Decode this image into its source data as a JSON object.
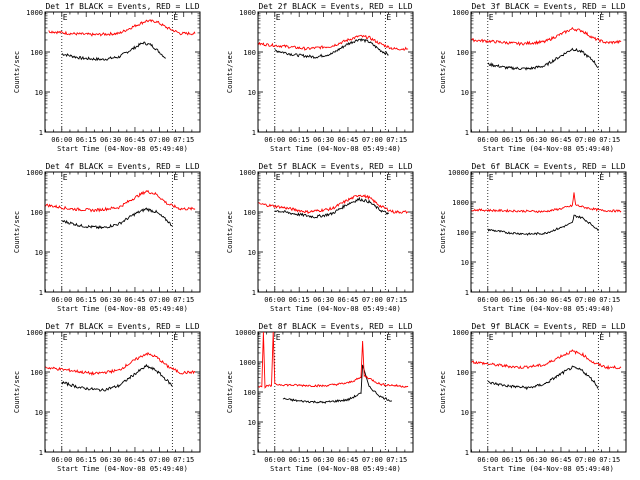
{
  "colors": {
    "events": "#000000",
    "lld": "#ff0000",
    "axis": "#000000",
    "background": "#ffffff"
  },
  "chart_data": [
    {
      "type": "line",
      "title": "Det 1f BLACK = Events, RED = LLD",
      "xlabel": "Start Time (04-Nov-08 05:49:40)",
      "ylabel": "Counts/sec",
      "yscale": "log",
      "ylim": [
        1,
        1000
      ],
      "yticks": [
        "1",
        "10",
        "100",
        "1000"
      ],
      "xticks": [
        "06:00",
        "06:15",
        "06:30",
        "06:45",
        "07:00",
        "07:15"
      ],
      "xlim": [
        "05:49:40",
        "07:25"
      ],
      "vlines": [
        "06:00",
        "07:08"
      ],
      "markers": [
        "E",
        "E"
      ],
      "series": [
        {
          "key": "events",
          "x": [
            "06:00",
            "06:12",
            "06:25",
            "06:35",
            "06:45",
            "06:50",
            "06:55",
            "07:00",
            "07:04"
          ],
          "values": [
            90,
            70,
            65,
            75,
            130,
            170,
            150,
            100,
            70
          ]
        },
        {
          "key": "lld",
          "x": [
            "05:52",
            "06:05",
            "06:20",
            "06:35",
            "06:45",
            "06:52",
            "06:58",
            "07:05",
            "07:13",
            "07:22"
          ],
          "values": [
            330,
            290,
            270,
            290,
            450,
            600,
            580,
            400,
            290,
            290
          ]
        }
      ]
    },
    {
      "type": "line",
      "title": "Det 2f BLACK = Events, RED = LLD",
      "xlabel": "Start Time (04-Nov-08 05:49:40)",
      "ylabel": "Counts/sec",
      "yscale": "log",
      "ylim": [
        1,
        1000
      ],
      "yticks": [
        "1",
        "10",
        "100",
        "1000"
      ],
      "xticks": [
        "06:00",
        "06:15",
        "06:30",
        "06:45",
        "07:00",
        "07:15"
      ],
      "xlim": [
        "05:49:40",
        "07:25"
      ],
      "vlines": [
        "06:00",
        "07:08"
      ],
      "markers": [
        "E",
        "E"
      ],
      "series": [
        {
          "key": "events",
          "x": [
            "06:00",
            "06:12",
            "06:25",
            "06:35",
            "06:45",
            "06:52",
            "06:58",
            "07:05",
            "07:10"
          ],
          "values": [
            110,
            85,
            75,
            90,
            160,
            210,
            180,
            110,
            85
          ]
        },
        {
          "key": "lld",
          "x": [
            "05:50",
            "06:05",
            "06:20",
            "06:35",
            "06:45",
            "06:52",
            "06:58",
            "07:05",
            "07:13",
            "07:22"
          ],
          "values": [
            160,
            140,
            120,
            140,
            200,
            250,
            230,
            160,
            120,
            120
          ]
        }
      ]
    },
    {
      "type": "line",
      "title": "Det 3f BLACK = Events, RED = LLD",
      "xlabel": "Start Time (04-Nov-08 05:49:40)",
      "ylabel": "Counts/sec",
      "yscale": "log",
      "ylim": [
        1,
        1000
      ],
      "yticks": [
        "1",
        "10",
        "100",
        "1000"
      ],
      "xticks": [
        "06:00",
        "06:15",
        "06:30",
        "06:45",
        "07:00",
        "07:15"
      ],
      "xlim": [
        "05:49:40",
        "07:25"
      ],
      "vlines": [
        "06:00",
        "07:08"
      ],
      "markers": [
        "E",
        "E"
      ],
      "series": [
        {
          "key": "events",
          "x": [
            "06:00",
            "06:12",
            "06:25",
            "06:35",
            "06:45",
            "06:52",
            "06:58",
            "07:05",
            "07:08"
          ],
          "values": [
            50,
            40,
            38,
            45,
            80,
            120,
            100,
            60,
            40
          ]
        },
        {
          "key": "lld",
          "x": [
            "05:50",
            "06:05",
            "06:20",
            "06:35",
            "06:45",
            "06:52",
            "06:58",
            "07:05",
            "07:13",
            "07:22"
          ],
          "values": [
            200,
            180,
            160,
            180,
            280,
            380,
            340,
            220,
            170,
            180
          ]
        }
      ]
    },
    {
      "type": "line",
      "title": "Det 4f BLACK = Events, RED = LLD",
      "xlabel": "Start Time (04-Nov-08 05:49:40)",
      "ylabel": "Counts/sec",
      "yscale": "log",
      "ylim": [
        1,
        1000
      ],
      "yticks": [
        "1",
        "10",
        "100",
        "1000"
      ],
      "xticks": [
        "06:00",
        "06:15",
        "06:30",
        "06:45",
        "07:00",
        "07:15"
      ],
      "xlim": [
        "05:49:40",
        "07:25"
      ],
      "vlines": [
        "06:00",
        "07:08"
      ],
      "markers": [
        "E",
        "E"
      ],
      "series": [
        {
          "key": "events",
          "x": [
            "06:00",
            "06:12",
            "06:25",
            "06:35",
            "06:45",
            "06:52",
            "06:58",
            "07:05",
            "07:08"
          ],
          "values": [
            60,
            45,
            40,
            50,
            90,
            120,
            100,
            60,
            45
          ]
        },
        {
          "key": "lld",
          "x": [
            "05:50",
            "06:05",
            "06:20",
            "06:35",
            "06:45",
            "06:52",
            "06:58",
            "07:05",
            "07:13",
            "07:22"
          ],
          "values": [
            150,
            120,
            110,
            130,
            230,
            330,
            280,
            160,
            120,
            120
          ]
        }
      ]
    },
    {
      "type": "line",
      "title": "Det 5f BLACK = Events, RED = LLD",
      "xlabel": "Start Time (04-Nov-08 05:49:40)",
      "ylabel": "Counts/sec",
      "yscale": "log",
      "ylim": [
        1,
        1000
      ],
      "yticks": [
        "1",
        "10",
        "100",
        "1000"
      ],
      "xticks": [
        "06:00",
        "06:15",
        "06:30",
        "06:45",
        "07:00",
        "07:15"
      ],
      "xlim": [
        "05:49:40",
        "07:25"
      ],
      "vlines": [
        "06:00",
        "07:08"
      ],
      "markers": [
        "E",
        "E"
      ],
      "series": [
        {
          "key": "events",
          "x": [
            "06:00",
            "06:12",
            "06:25",
            "06:35",
            "06:45",
            "06:52",
            "06:58",
            "07:05",
            "07:10"
          ],
          "values": [
            110,
            90,
            75,
            90,
            160,
            210,
            180,
            110,
            90
          ]
        },
        {
          "key": "lld",
          "x": [
            "05:50",
            "06:05",
            "06:20",
            "06:35",
            "06:45",
            "06:52",
            "06:58",
            "07:05",
            "07:13",
            "07:22"
          ],
          "values": [
            160,
            130,
            100,
            120,
            200,
            270,
            230,
            140,
            100,
            100
          ]
        }
      ]
    },
    {
      "type": "line",
      "title": "Det 6f BLACK = Events, RED = LLD",
      "xlabel": "Start Time (04-Nov-08 05:49:40)",
      "ylabel": "Counts/sec",
      "yscale": "log",
      "ylim": [
        1,
        10000
      ],
      "yticks": [
        "1",
        "10",
        "100",
        "1000",
        "10000"
      ],
      "xticks": [
        "06:00",
        "06:15",
        "06:30",
        "06:45",
        "07:00",
        "07:15"
      ],
      "xlim": [
        "05:49:40",
        "07:25"
      ],
      "vlines": [
        "06:00",
        "07:08"
      ],
      "markers": [
        "E",
        "E"
      ],
      "series": [
        {
          "key": "events",
          "x": [
            "06:00",
            "06:12",
            "06:25",
            "06:35",
            "06:45",
            "06:52",
            "06:53",
            "06:58",
            "07:05",
            "07:08"
          ],
          "values": [
            120,
            95,
            85,
            90,
            140,
            200,
            350,
            300,
            160,
            110
          ]
        },
        {
          "key": "lld",
          "x": [
            "05:50",
            "06:05",
            "06:20",
            "06:35",
            "06:45",
            "06:52",
            "06:53",
            "06:54",
            "07:00",
            "07:10",
            "07:22"
          ],
          "values": [
            550,
            520,
            500,
            480,
            600,
            750,
            2000,
            800,
            650,
            520,
            500
          ]
        }
      ]
    },
    {
      "type": "line",
      "title": "Det 7f BLACK = Events, RED = LLD",
      "xlabel": "Start Time (04-Nov-08 05:49:40)",
      "ylabel": "Counts/sec",
      "yscale": "log",
      "ylim": [
        1,
        1000
      ],
      "yticks": [
        "1",
        "10",
        "100",
        "1000"
      ],
      "xticks": [
        "06:00",
        "06:15",
        "06:30",
        "06:45",
        "07:00",
        "07:15"
      ],
      "xlim": [
        "05:49:40",
        "07:25"
      ],
      "vlines": [
        "06:00",
        "07:08"
      ],
      "markers": [
        "E",
        "E"
      ],
      "series": [
        {
          "key": "events",
          "x": [
            "06:00",
            "06:12",
            "06:25",
            "06:35",
            "06:45",
            "06:52",
            "06:58",
            "07:05",
            "07:08"
          ],
          "values": [
            55,
            40,
            35,
            45,
            90,
            140,
            110,
            60,
            45
          ]
        },
        {
          "key": "lld",
          "x": [
            "05:50",
            "06:05",
            "06:20",
            "06:35",
            "06:45",
            "06:52",
            "06:58",
            "07:05",
            "07:13",
            "07:22"
          ],
          "values": [
            130,
            110,
            90,
            110,
            200,
            290,
            240,
            140,
            95,
            100
          ]
        }
      ]
    },
    {
      "type": "line",
      "title": "Det 8f BLACK = Events, RED = LLD",
      "xlabel": "Start Time (04-Nov-08 05:49:40)",
      "ylabel": "Counts/sec",
      "yscale": "log",
      "ylim": [
        1,
        10000
      ],
      "yticks": [
        "1",
        "10",
        "100",
        "1000",
        "10000"
      ],
      "xticks": [
        "06:00",
        "06:15",
        "06:30",
        "06:45",
        "07:00",
        "07:15"
      ],
      "xlim": [
        "05:49:40",
        "07:25"
      ],
      "vlines": [
        "06:00",
        "07:08"
      ],
      "markers": [
        "E",
        "E"
      ],
      "series": [
        {
          "key": "events",
          "x": [
            "06:05",
            "06:15",
            "06:30",
            "06:45",
            "06:53",
            "06:54",
            "06:58",
            "07:05",
            "07:12"
          ],
          "values": [
            60,
            50,
            45,
            55,
            90,
            800,
            150,
            70,
            50
          ]
        },
        {
          "key": "lld",
          "x": [
            "05:50",
            "05:52",
            "05:53",
            "05:54",
            "05:56",
            "05:58",
            "05:59",
            "06:00",
            "06:10",
            "06:30",
            "06:45",
            "06:53",
            "06:54",
            "06:55",
            "07:05",
            "07:22"
          ],
          "values": [
            150,
            150,
            10000,
            150,
            160,
            160,
            10000,
            180,
            170,
            160,
            200,
            300,
            5000,
            350,
            180,
            150
          ]
        }
      ]
    },
    {
      "type": "line",
      "title": "Det 9f BLACK = Events, RED = LLD",
      "xlabel": "Start Time (04-Nov-08 05:49:40)",
      "ylabel": "Counts/sec",
      "yscale": "log",
      "ylim": [
        1,
        1000
      ],
      "yticks": [
        "1",
        "10",
        "100",
        "1000"
      ],
      "xticks": [
        "06:00",
        "06:15",
        "06:30",
        "06:45",
        "07:00",
        "07:15"
      ],
      "xlim": [
        "05:49:40",
        "07:25"
      ],
      "vlines": [
        "06:00",
        "07:08"
      ],
      "markers": [
        "E",
        "E"
      ],
      "series": [
        {
          "key": "events",
          "x": [
            "06:00",
            "06:12",
            "06:25",
            "06:35",
            "06:45",
            "06:52",
            "06:58",
            "07:05",
            "07:08"
          ],
          "values": [
            55,
            45,
            40,
            50,
            90,
            130,
            110,
            60,
            40
          ]
        },
        {
          "key": "lld",
          "x": [
            "05:50",
            "06:05",
            "06:20",
            "06:35",
            "06:45",
            "06:52",
            "06:58",
            "07:05",
            "07:13",
            "07:22"
          ],
          "values": [
            180,
            150,
            130,
            150,
            250,
            330,
            280,
            170,
            130,
            130
          ]
        }
      ]
    }
  ]
}
